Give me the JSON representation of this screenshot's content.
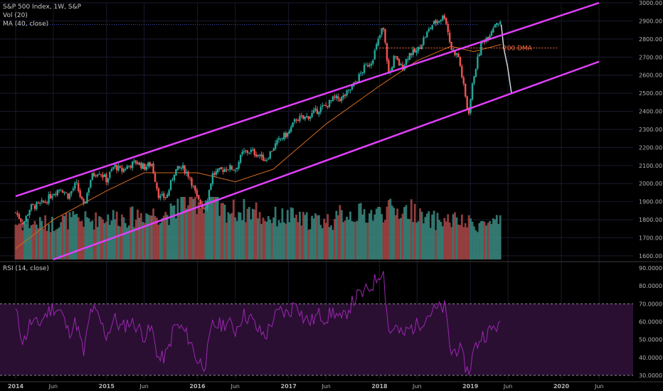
{
  "header": {
    "line1": "S&P 500 Index, 1W, S&P",
    "line2": "Vol (20)",
    "line3": "MA (40, close)"
  },
  "rsi_header": "RSI (14, close)",
  "annotation": {
    "label": "200 DMA",
    "value": 2750
  },
  "colors": {
    "background": "#000000",
    "up": "#26a69a",
    "down": "#ef5350",
    "volume_up": "#3b8a80",
    "volume_down": "#a84848",
    "channel": "#e040fb",
    "ma": "#d2691e",
    "dma": "#ff7043",
    "rsi_line": "#9c27b0",
    "rsi_band": "#2a0f33",
    "grid": "#1a1a2e",
    "axis_text": "#b4b4b4"
  },
  "chart_data": [
    {
      "type": "candlestick",
      "title": "S&P 500 Index, 1W, S&P",
      "x_axis": {
        "labels": [
          "2014",
          "Jun",
          "2015",
          "Jun",
          "2016",
          "Jun",
          "2017",
          "Jun",
          "2018",
          "Jun",
          "2019",
          "Jun",
          "2020",
          "Jun"
        ],
        "dates": [
          "2014-01-01",
          "2014-06-01",
          "2015-01-01",
          "2015-06-01",
          "2016-01-01",
          "2016-06-01",
          "2017-01-01",
          "2017-06-01",
          "2018-01-01",
          "2018-06-01",
          "2019-01-01",
          "2019-06-01",
          "2020-01-01",
          "2020-06-01"
        ]
      },
      "y_axis": {
        "ticks": [
          1600,
          1700,
          1800,
          1900,
          2000,
          2100,
          2200,
          2300,
          2400,
          2500,
          2600,
          2700,
          2800,
          2900,
          3000
        ],
        "tick_labels": [
          "1600.00",
          "1700.00",
          "1800.00",
          "1900.00",
          "2000.00",
          "2100.00",
          "2200.00",
          "2300.00",
          "2400.00",
          "2500.00",
          "2600.00",
          "2700.00",
          "2800.00",
          "2900.00",
          "3000.00"
        ],
        "range": [
          1580,
          3000
        ]
      },
      "price_path": [
        [
          "2014-01-01",
          1840
        ],
        [
          "2014-02-01",
          1780
        ],
        [
          "2014-03-01",
          1870
        ],
        [
          "2014-04-01",
          1880
        ],
        [
          "2014-05-01",
          1900
        ],
        [
          "2014-06-01",
          1950
        ],
        [
          "2014-07-01",
          1975
        ],
        [
          "2014-08-01",
          1930
        ],
        [
          "2014-09-01",
          2000
        ],
        [
          "2014-10-01",
          1870
        ],
        [
          "2014-11-01",
          2040
        ],
        [
          "2014-12-01",
          2070
        ],
        [
          "2015-01-01",
          2020
        ],
        [
          "2015-02-01",
          2100
        ],
        [
          "2015-03-01",
          2070
        ],
        [
          "2015-04-01",
          2100
        ],
        [
          "2015-05-01",
          2120
        ],
        [
          "2015-06-01",
          2090
        ],
        [
          "2015-07-01",
          2110
        ],
        [
          "2015-08-01",
          1920
        ],
        [
          "2015-09-01",
          1930
        ],
        [
          "2015-10-01",
          2070
        ],
        [
          "2015-11-01",
          2090
        ],
        [
          "2015-12-01",
          2040
        ],
        [
          "2016-01-01",
          1910
        ],
        [
          "2016-02-01",
          1860
        ],
        [
          "2016-03-01",
          2050
        ],
        [
          "2016-04-01",
          2070
        ],
        [
          "2016-05-01",
          2090
        ],
        [
          "2016-06-01",
          2080
        ],
        [
          "2016-07-01",
          2170
        ],
        [
          "2016-08-01",
          2180
        ],
        [
          "2016-09-01",
          2160
        ],
        [
          "2016-10-01",
          2130
        ],
        [
          "2016-11-01",
          2200
        ],
        [
          "2016-12-01",
          2250
        ],
        [
          "2017-01-01",
          2280
        ],
        [
          "2017-02-01",
          2360
        ],
        [
          "2017-03-01",
          2360
        ],
        [
          "2017-04-01",
          2380
        ],
        [
          "2017-05-01",
          2410
        ],
        [
          "2017-06-01",
          2430
        ],
        [
          "2017-07-01",
          2470
        ],
        [
          "2017-08-01",
          2470
        ],
        [
          "2017-09-01",
          2510
        ],
        [
          "2017-10-01",
          2570
        ],
        [
          "2017-11-01",
          2640
        ],
        [
          "2017-12-01",
          2680
        ],
        [
          "2018-01-15",
          2870
        ],
        [
          "2018-02-09",
          2590
        ],
        [
          "2018-03-01",
          2700
        ],
        [
          "2018-04-01",
          2640
        ],
        [
          "2018-05-01",
          2720
        ],
        [
          "2018-06-01",
          2730
        ],
        [
          "2018-07-01",
          2810
        ],
        [
          "2018-08-01",
          2880
        ],
        [
          "2018-09-21",
          2930
        ],
        [
          "2018-10-15",
          2750
        ],
        [
          "2018-11-15",
          2700
        ],
        [
          "2018-12-24",
          2380
        ],
        [
          "2019-01-15",
          2600
        ],
        [
          "2019-02-15",
          2780
        ],
        [
          "2019-03-15",
          2820
        ],
        [
          "2019-04-15",
          2900
        ],
        [
          "2019-05-05",
          2880
        ]
      ],
      "projection": [
        [
          "2019-05-05",
          2880
        ],
        [
          "2019-05-15",
          2750
        ],
        [
          "2019-05-30",
          2650
        ],
        [
          "2019-06-15",
          2500
        ]
      ],
      "ma_path": [
        [
          "2014-01-01",
          1640
        ],
        [
          "2014-06-01",
          1800
        ],
        [
          "2015-01-01",
          1960
        ],
        [
          "2015-06-01",
          2060
        ],
        [
          "2016-01-01",
          2060
        ],
        [
          "2016-06-01",
          2010
        ],
        [
          "2016-11-01",
          2080
        ],
        [
          "2017-06-01",
          2330
        ],
        [
          "2018-01-01",
          2540
        ],
        [
          "2018-06-01",
          2680
        ],
        [
          "2018-10-15",
          2760
        ],
        [
          "2019-01-15",
          2730
        ],
        [
          "2019-05-05",
          2770
        ]
      ],
      "channel_lines": [
        {
          "name": "",
          "points": [
            [
              "2014-01-01",
              1930
            ],
            [
              "2020-06-01",
              3000
            ]
          ]
        },
        {
          "name": "",
          "points": [
            [
              "2014-06-01",
              1580
            ],
            [
              "2020-06-01",
              2675
            ]
          ]
        }
      ],
      "reference_lines": [
        {
          "name": "",
          "value": 2880,
          "start": "2014-01-01",
          "end": "2019-02-01"
        }
      ],
      "volume_shape": {
        "description_values_relative": [
          0.55,
          0.6,
          0.65,
          0.7,
          0.9,
          0.75,
          0.65,
          0.6,
          0.7,
          0.75,
          0.6,
          0.55,
          0.65
        ],
        "start": "2014-01-01",
        "end": "2019-05-05"
      }
    },
    {
      "type": "line",
      "title": "RSI (14, close)",
      "y_axis": {
        "ticks": [
          30,
          40,
          50,
          60,
          70,
          80,
          90
        ],
        "tick_labels": [
          "30.0000",
          "40.0000",
          "50.0000",
          "60.0000",
          "70.0000",
          "80.0000",
          "90.0000"
        ],
        "range": [
          28,
          92
        ]
      },
      "bands": [
        30,
        70
      ],
      "series": [
        {
          "points": [
            [
              "2014-01-01",
              66
            ],
            [
              "2014-02-01",
              48
            ],
            [
              "2014-03-01",
              60
            ],
            [
              "2014-04-01",
              58
            ],
            [
              "2014-05-01",
              64
            ],
            [
              "2014-06-01",
              68
            ],
            [
              "2014-07-01",
              66
            ],
            [
              "2014-08-01",
              54
            ],
            [
              "2014-09-01",
              60
            ],
            [
              "2014-10-01",
              42
            ],
            [
              "2014-11-01",
              68
            ],
            [
              "2014-12-01",
              62
            ],
            [
              "2015-01-01",
              52
            ],
            [
              "2015-02-01",
              62
            ],
            [
              "2015-03-01",
              56
            ],
            [
              "2015-04-01",
              60
            ],
            [
              "2015-05-01",
              58
            ],
            [
              "2015-06-01",
              52
            ],
            [
              "2015-07-01",
              56
            ],
            [
              "2015-08-01",
              38
            ],
            [
              "2015-09-01",
              42
            ],
            [
              "2015-10-01",
              58
            ],
            [
              "2015-11-01",
              56
            ],
            [
              "2015-12-01",
              50
            ],
            [
              "2016-01-01",
              38
            ],
            [
              "2016-02-01",
              36
            ],
            [
              "2016-03-01",
              58
            ],
            [
              "2016-04-01",
              58
            ],
            [
              "2016-05-01",
              60
            ],
            [
              "2016-06-01",
              55
            ],
            [
              "2016-07-01",
              64
            ],
            [
              "2016-08-01",
              62
            ],
            [
              "2016-09-01",
              55
            ],
            [
              "2016-10-01",
              52
            ],
            [
              "2016-11-01",
              62
            ],
            [
              "2016-12-01",
              66
            ],
            [
              "2017-01-01",
              64
            ],
            [
              "2017-02-01",
              72
            ],
            [
              "2017-03-01",
              62
            ],
            [
              "2017-04-01",
              60
            ],
            [
              "2017-05-01",
              64
            ],
            [
              "2017-06-01",
              62
            ],
            [
              "2017-07-01",
              66
            ],
            [
              "2017-08-01",
              60
            ],
            [
              "2017-09-01",
              68
            ],
            [
              "2017-10-01",
              74
            ],
            [
              "2017-11-01",
              76
            ],
            [
              "2017-12-01",
              80
            ],
            [
              "2018-01-15",
              90
            ],
            [
              "2018-02-09",
              52
            ],
            [
              "2018-03-01",
              58
            ],
            [
              "2018-04-01",
              52
            ],
            [
              "2018-05-01",
              56
            ],
            [
              "2018-06-01",
              58
            ],
            [
              "2018-07-01",
              62
            ],
            [
              "2018-08-01",
              66
            ],
            [
              "2018-09-21",
              68
            ],
            [
              "2018-10-15",
              42
            ],
            [
              "2018-11-15",
              46
            ],
            [
              "2018-12-24",
              31
            ],
            [
              "2019-01-15",
              44
            ],
            [
              "2019-02-15",
              52
            ],
            [
              "2019-03-15",
              54
            ],
            [
              "2019-04-15",
              58
            ],
            [
              "2019-05-05",
              56
            ]
          ]
        }
      ]
    }
  ]
}
